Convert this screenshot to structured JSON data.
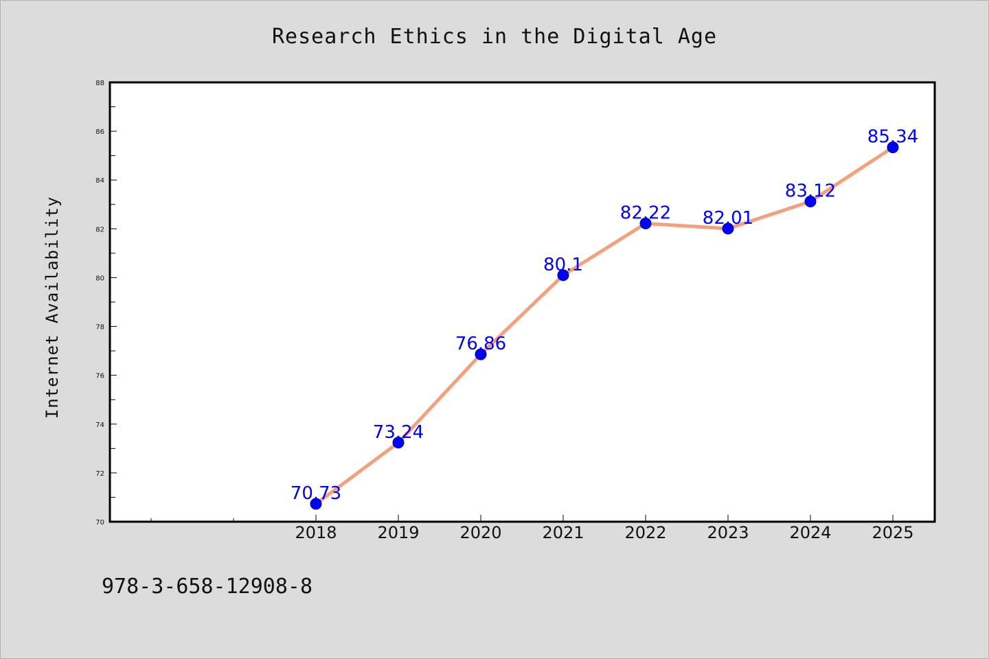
{
  "chart_data": {
    "type": "line",
    "title": "Research Ethics in the Digital Age",
    "xlabel": "",
    "ylabel": "Internet Availability",
    "categories": [
      "2018",
      "2019",
      "2020",
      "2021",
      "2022",
      "2023",
      "2024",
      "2025"
    ],
    "series": [
      {
        "values": [
          70.73,
          73.24,
          76.86,
          80.1,
          82.22,
          82.01,
          83.12,
          85.34
        ],
        "data_labels": [
          "70.73",
          "73.24",
          "76.86",
          "80.1",
          "82.22",
          "82.01",
          "83.12",
          "85.34"
        ]
      }
    ],
    "ylim": [
      70,
      88
    ],
    "yticks": [
      "70",
      "72",
      "74",
      "76",
      "78",
      "80",
      "82",
      "84",
      "86",
      "88"
    ],
    "grid": false,
    "legend": "none",
    "colors": {
      "line": "#f4a07c",
      "marker": "#0000ff",
      "data_label": "#0000ff",
      "background": "#dcdcdc",
      "plot_background": "#ffffff"
    }
  },
  "footnote": "978-3-658-12908-8"
}
